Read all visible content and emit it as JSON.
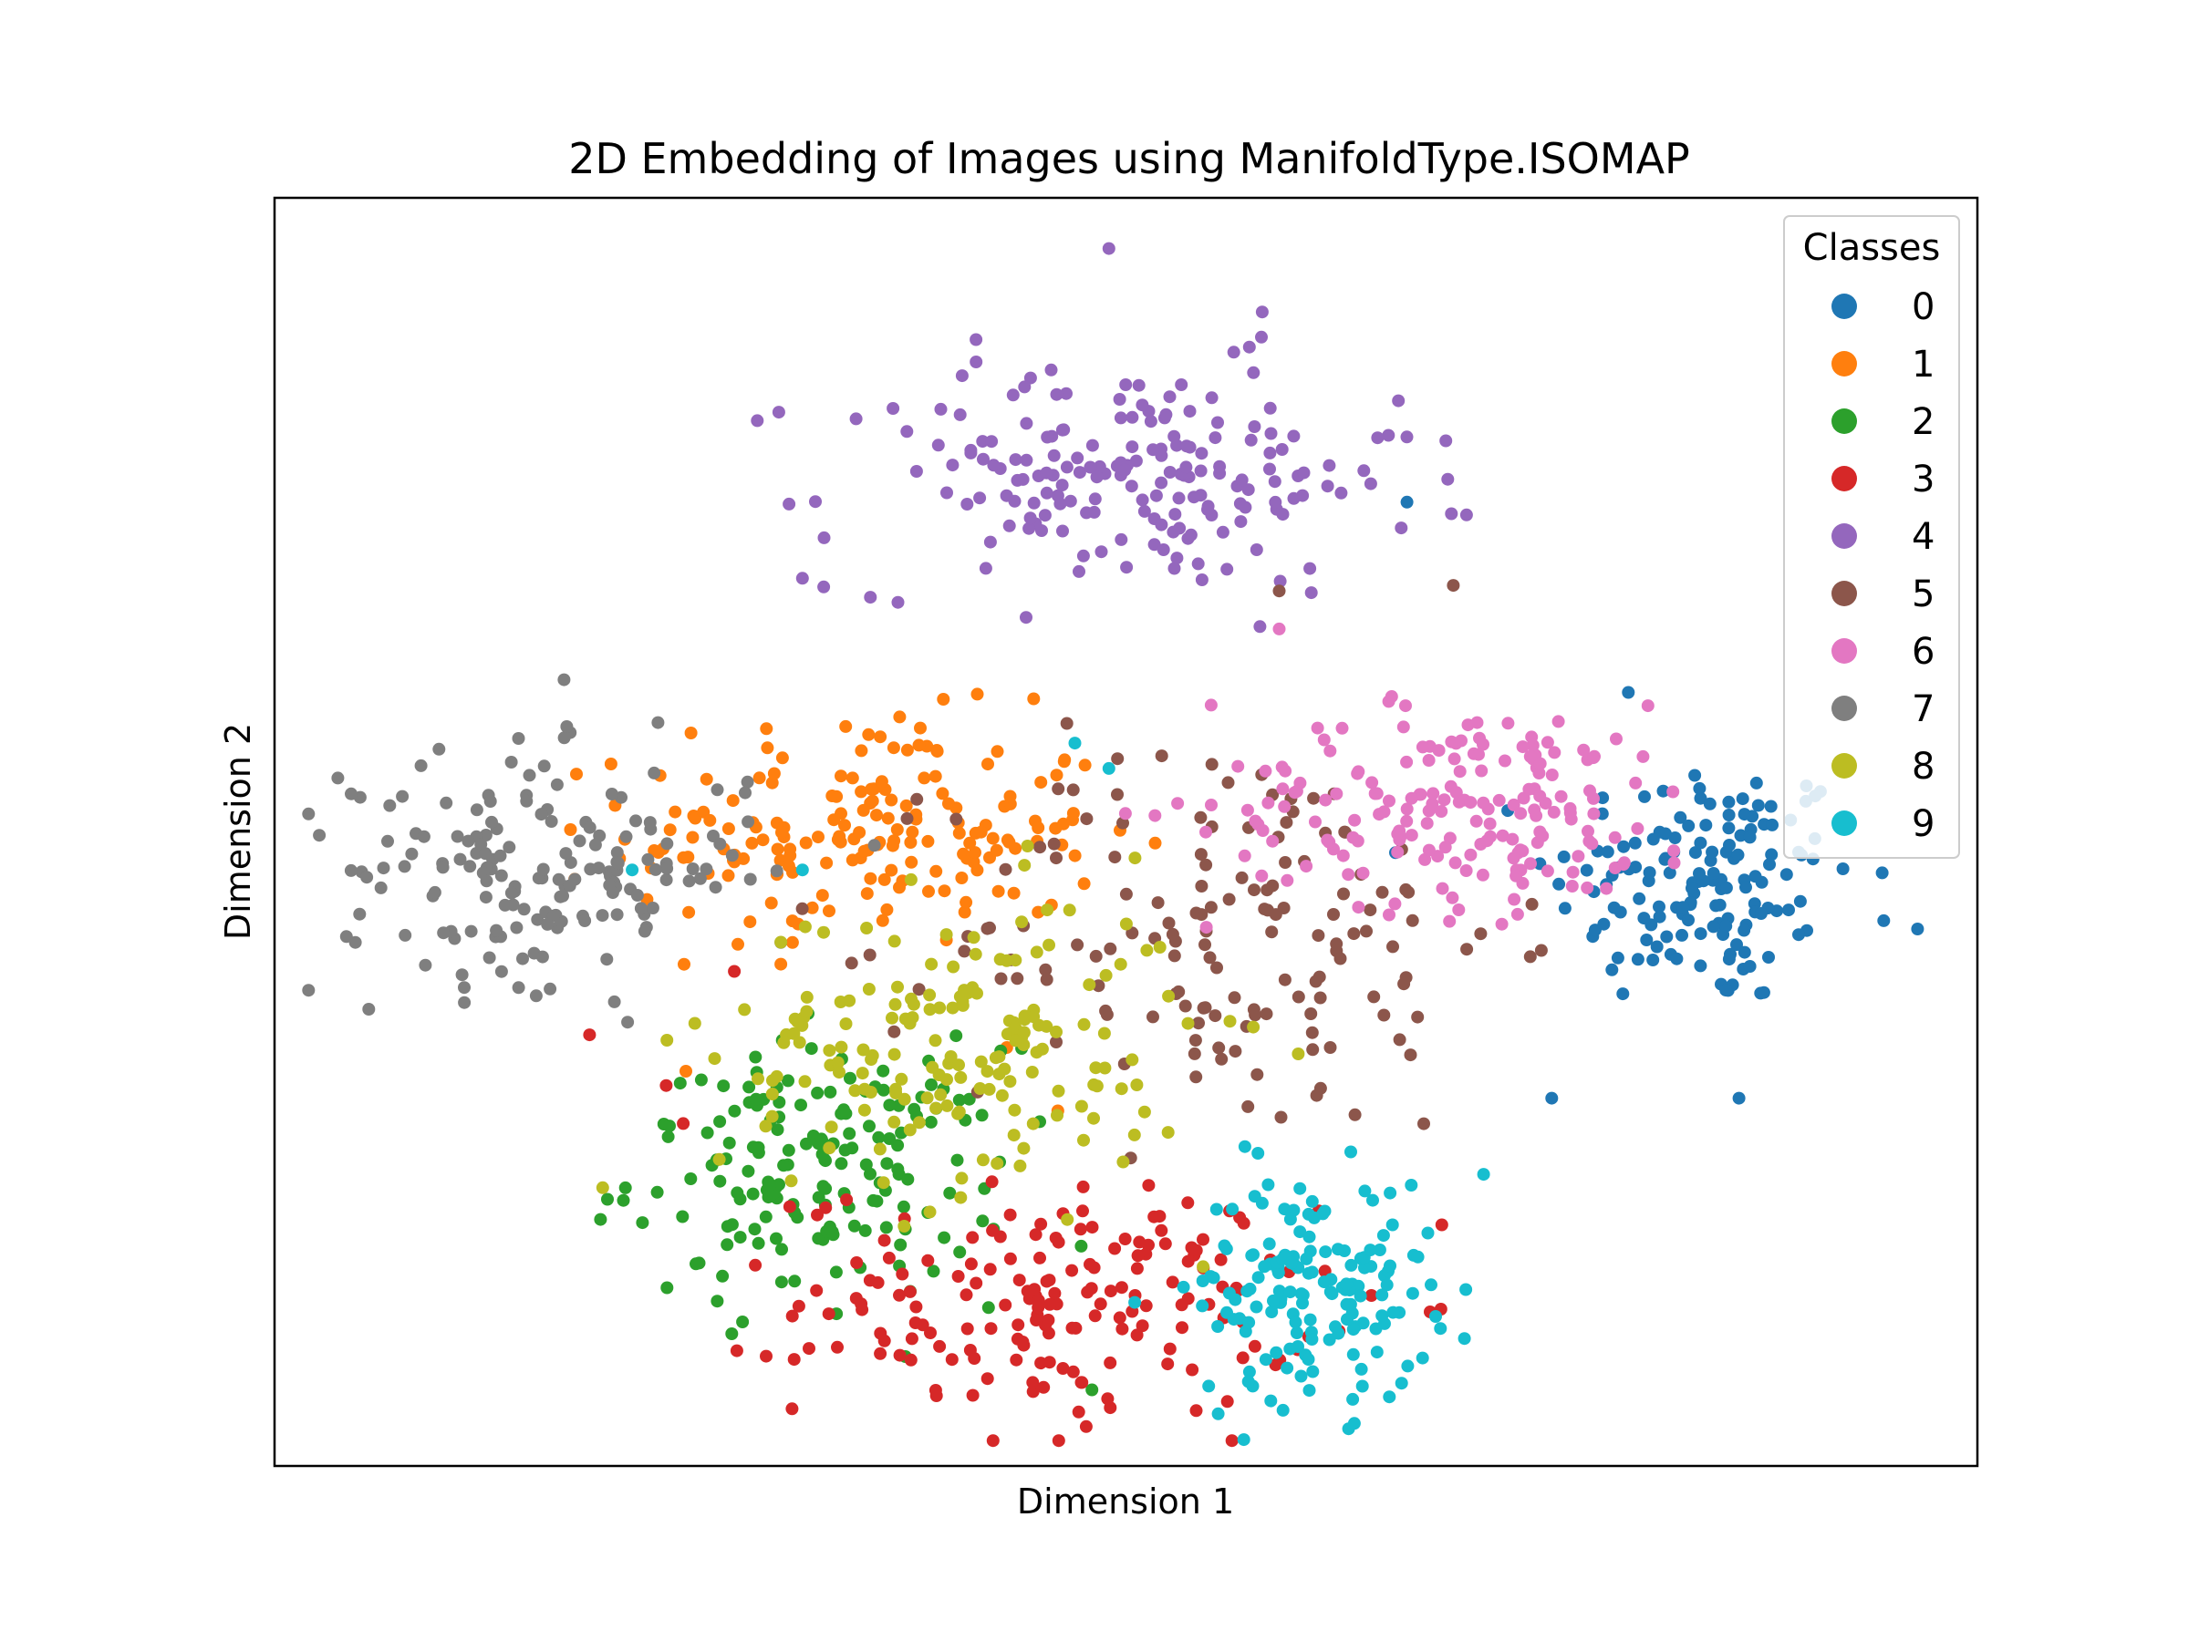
{
  "chart_data": {
    "type": "scatter",
    "title": "2D Embedding of Images using ManifoldType.ISOMAP",
    "xlabel": "Dimension 1",
    "ylabel": "Dimension 2",
    "xlim": [
      0,
      100
    ],
    "ylim": [
      0,
      100
    ],
    "ticks_visible": false,
    "grid": false,
    "legend": {
      "title": "Classes",
      "placement": "top-right"
    },
    "series": [
      {
        "name": "0",
        "color": "#1f77b4",
        "center": [
          84,
          46
        ],
        "spread": [
          4.5,
          5
        ],
        "count": 150,
        "extra": [
          [
            66.5,
            76
          ],
          [
            94.5,
            43
          ],
          [
            86,
            29
          ],
          [
            75,
            29
          ],
          [
            79.5,
            61
          ]
        ]
      },
      {
        "name": "1",
        "color": "#ff7f0e",
        "center": [
          35,
          50
        ],
        "spread": [
          7,
          4.5
        ],
        "count": 190,
        "extra": [
          [
            46,
            28
          ],
          [
            43,
            33
          ]
        ]
      },
      {
        "name": "2",
        "color": "#2ca02c",
        "center": [
          32,
          23
        ],
        "spread": [
          5.5,
          5
        ],
        "count": 170,
        "extra": [
          [
            26,
            13
          ],
          [
            33,
            12
          ],
          [
            48,
            6
          ]
        ]
      },
      {
        "name": "3",
        "color": "#d62828",
        "center": [
          46,
          13
        ],
        "spread": [
          7.5,
          4.5
        ],
        "count": 180,
        "extra": [
          [
            18.5,
            34
          ],
          [
            23,
            30
          ],
          [
            24,
            27
          ],
          [
            27,
            39
          ]
        ]
      },
      {
        "name": "4",
        "color": "#9467bd",
        "center": [
          50,
          78
        ],
        "spread": [
          8.5,
          4.5
        ],
        "count": 190,
        "extra": [
          [
            49,
            96
          ],
          [
            66,
            84
          ],
          [
            70,
            75
          ],
          [
            31,
            70
          ],
          [
            58,
            91
          ]
        ]
      },
      {
        "name": "5",
        "color": "#8c564b",
        "center": [
          56,
          42
        ],
        "spread": [
          8,
          8
        ],
        "count": 150,
        "extra": [
          [
            59,
            69
          ],
          [
            62,
            33
          ]
        ]
      },
      {
        "name": "6",
        "color": "#e377c2",
        "center": [
          70,
          52
        ],
        "spread": [
          7.5,
          4
        ],
        "count": 190,
        "extra": [
          [
            59,
            66
          ],
          [
            55,
            60
          ]
        ]
      },
      {
        "name": "7",
        "color": "#7f7f7f",
        "center": [
          16,
          47
        ],
        "spread": [
          6,
          4.5
        ],
        "count": 170,
        "extra": [
          [
            4.5,
            53
          ],
          [
            17,
            62
          ]
        ]
      },
      {
        "name": "8",
        "color": "#bcbd22",
        "center": [
          40,
          33
        ],
        "spread": [
          7,
          6
        ],
        "count": 180,
        "extra": []
      },
      {
        "name": "9",
        "color": "#17becf",
        "center": [
          61,
          14
        ],
        "spread": [
          3.5,
          4.5
        ],
        "count": 160,
        "extra": [
          [
            71,
            23
          ],
          [
            21,
            47
          ],
          [
            49,
            55
          ],
          [
            47,
            57
          ],
          [
            31,
            47
          ]
        ]
      }
    ]
  }
}
